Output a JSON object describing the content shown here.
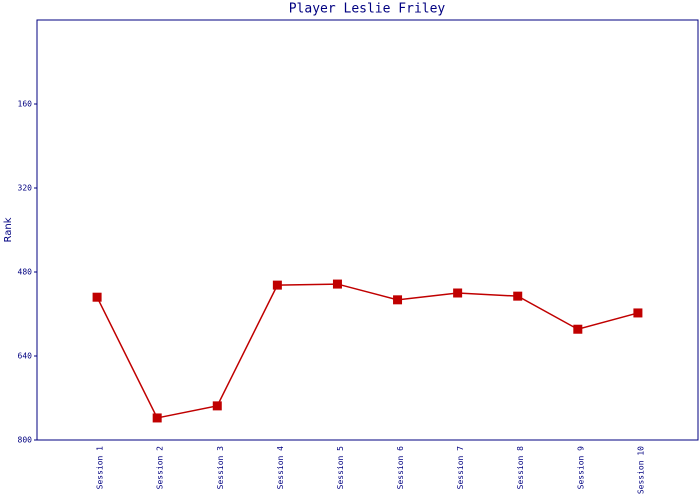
{
  "chart_data": {
    "type": "line",
    "title": "Player Leslie Friley",
    "y_label": "Rank",
    "categories": [
      "Session 1",
      "Session 2",
      "Session 3",
      "Session 4",
      "Session 5",
      "Session 6",
      "Session 7",
      "Session 8",
      "Session 9",
      "Session 10"
    ],
    "series": [
      {
        "name": "Rank",
        "color": "#c00000",
        "values": [
          528,
          758,
          735,
          505,
          503,
          533,
          520,
          526,
          589,
          558
        ]
      }
    ],
    "ylim": [
      0,
      800
    ],
    "yticks": [
      160,
      320,
      480,
      640,
      800
    ],
    "y_inverted": true,
    "grid": false
  }
}
